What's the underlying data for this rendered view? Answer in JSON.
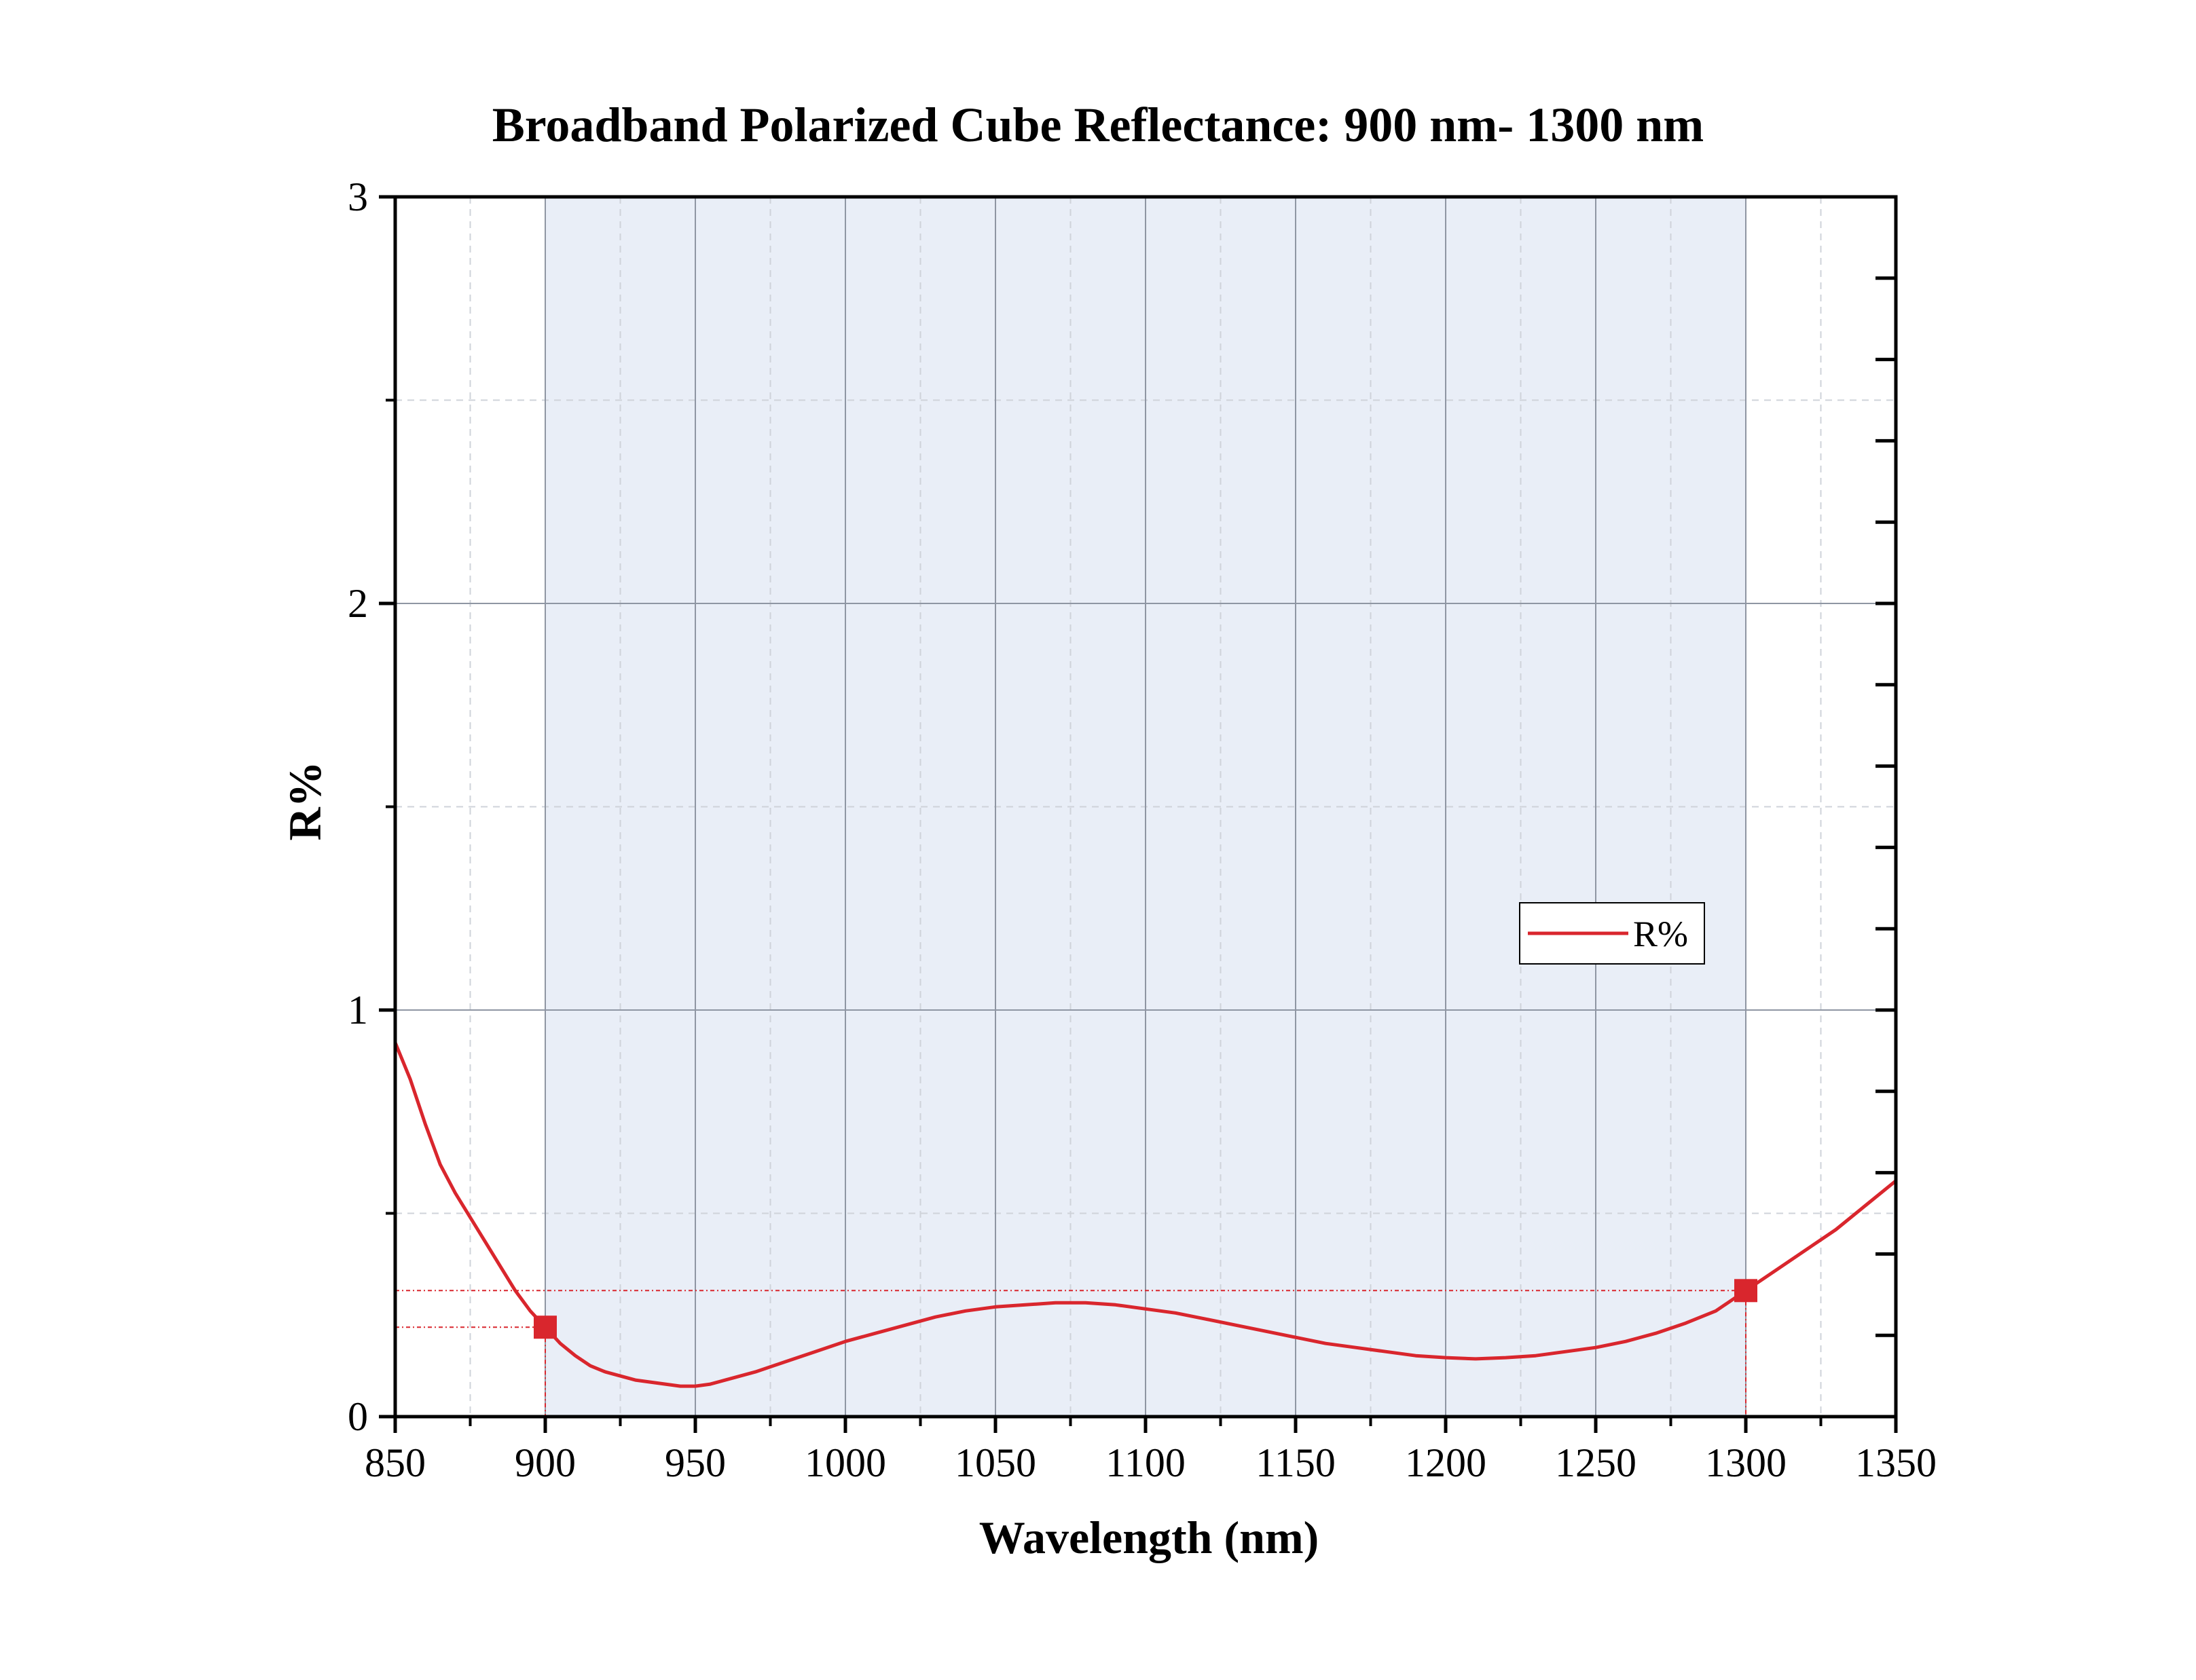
{
  "chart_data": {
    "type": "line",
    "title": "Broadband Polarized Cube Reflectance: 900 nm- 1300 nm",
    "xlabel": "Wavelength (nm)",
    "ylabel": "R%",
    "xlim": [
      850,
      1350
    ],
    "ylim": [
      0,
      3
    ],
    "x_ticks": [
      850,
      900,
      950,
      1000,
      1050,
      1100,
      1150,
      1200,
      1250,
      1300,
      1350
    ],
    "y_ticks": [
      0,
      1,
      2,
      3
    ],
    "grid": true,
    "shaded_band": {
      "from": 900,
      "to": 1300,
      "color": "#e9eef7"
    },
    "legend": {
      "position": "right-middle",
      "entries": [
        "R%"
      ]
    },
    "series": [
      {
        "name": "R%",
        "color": "#d9262d",
        "x": [
          850,
          855,
          860,
          865,
          870,
          875,
          880,
          885,
          890,
          895,
          900,
          905,
          910,
          915,
          920,
          925,
          930,
          935,
          940,
          945,
          950,
          955,
          960,
          970,
          980,
          990,
          1000,
          1010,
          1020,
          1030,
          1040,
          1050,
          1060,
          1070,
          1080,
          1090,
          1100,
          1110,
          1120,
          1130,
          1140,
          1150,
          1160,
          1170,
          1180,
          1190,
          1200,
          1210,
          1220,
          1230,
          1240,
          1250,
          1260,
          1270,
          1280,
          1290,
          1300,
          1310,
          1320,
          1330,
          1340,
          1350
        ],
        "values": [
          0.92,
          0.83,
          0.72,
          0.62,
          0.55,
          0.49,
          0.43,
          0.37,
          0.31,
          0.26,
          0.22,
          0.18,
          0.15,
          0.125,
          0.11,
          0.1,
          0.09,
          0.085,
          0.08,
          0.075,
          0.075,
          0.08,
          0.09,
          0.11,
          0.135,
          0.16,
          0.185,
          0.205,
          0.225,
          0.245,
          0.26,
          0.27,
          0.275,
          0.28,
          0.28,
          0.275,
          0.265,
          0.255,
          0.24,
          0.225,
          0.21,
          0.195,
          0.18,
          0.17,
          0.16,
          0.15,
          0.145,
          0.142,
          0.145,
          0.15,
          0.16,
          0.17,
          0.185,
          0.205,
          0.23,
          0.26,
          0.31,
          0.36,
          0.41,
          0.46,
          0.52,
          0.58
        ]
      }
    ],
    "markers": [
      {
        "x": 900,
        "y": 0.22
      },
      {
        "x": 1300,
        "y": 0.31
      }
    ]
  }
}
